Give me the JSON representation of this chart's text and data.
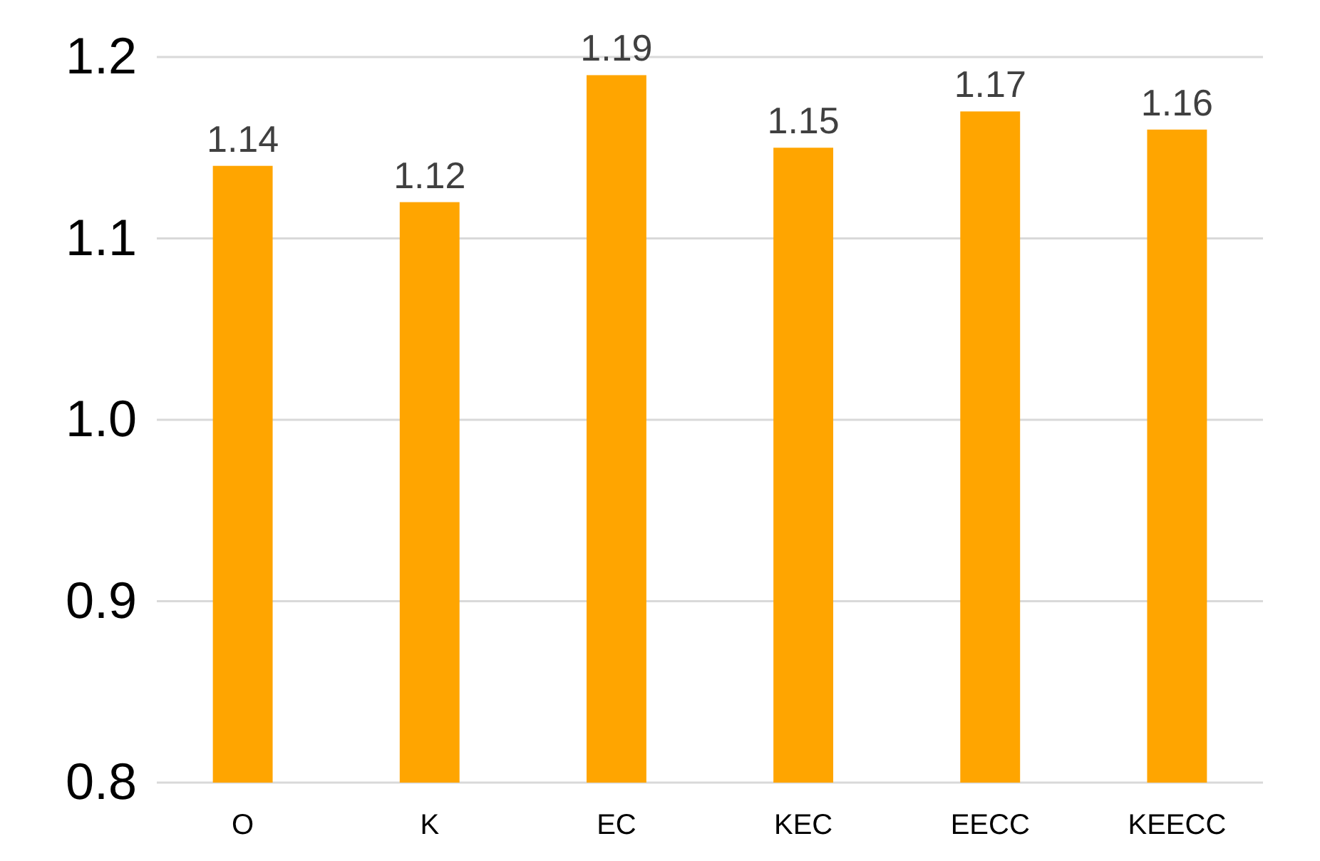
{
  "chart_data": {
    "type": "bar",
    "categories": [
      "O",
      "K",
      "EC",
      "KEC",
      "EECC",
      "KEECC"
    ],
    "values": [
      1.14,
      1.12,
      1.19,
      1.15,
      1.17,
      1.16
    ],
    "color": "#ffa500",
    "ylim": [
      0.8,
      1.2
    ],
    "yticks": [
      0.8,
      0.9,
      {
        "value": 1,
        "label": "1.0"
      },
      1.1,
      1.2
    ],
    "grid": "y",
    "data_labels": true
  }
}
